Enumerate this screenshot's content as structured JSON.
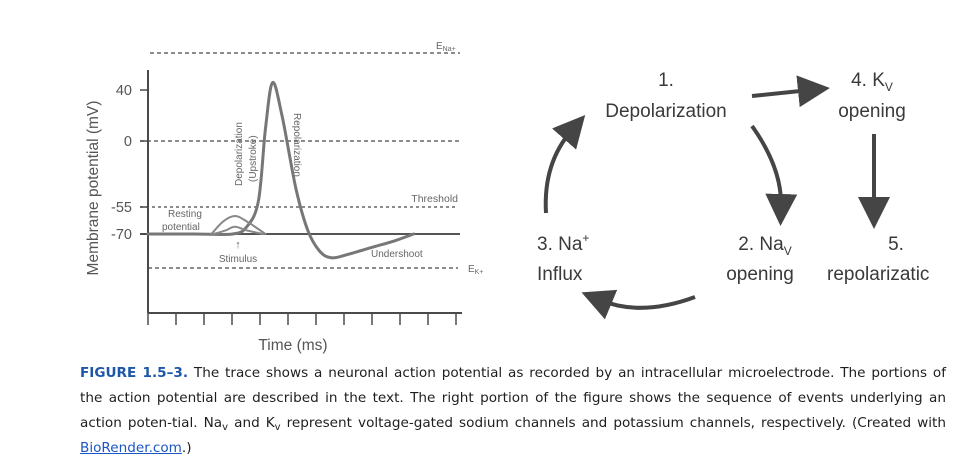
{
  "chart_data": {
    "type": "line",
    "title": "",
    "xlabel": "Time (ms)",
    "ylabel": "Membrane potential (mV)",
    "ylim": [
      -110,
      55
    ],
    "yticks": [
      {
        "value": 40,
        "label": "40"
      },
      {
        "value": 0,
        "label": "0"
      },
      {
        "value": -55,
        "label": "-55"
      },
      {
        "value": -70,
        "label": "-70"
      }
    ],
    "xtick_count": 12,
    "grid": false,
    "reference_lines": [
      {
        "name": "e_na",
        "value": 55,
        "label": "E",
        "sub": "Na+",
        "color": "#555555"
      },
      {
        "name": "zero",
        "value": 0,
        "label": "",
        "color": "#555555"
      },
      {
        "name": "threshold",
        "value": -55,
        "label": "Threshold",
        "color": "#555555"
      },
      {
        "name": "resting",
        "value": -70,
        "label": "",
        "color": "#555555"
      },
      {
        "name": "e_k",
        "value": -90,
        "label": "E",
        "sub": "K+",
        "color": "#555555"
      }
    ],
    "series": [
      {
        "role": "action-potential",
        "color": "#777777",
        "x": [
          0,
          2,
          3.6,
          4.2,
          4.7,
          5.0,
          5.3,
          5.7,
          6.3,
          6.8,
          7.3,
          7.8,
          8.5,
          9.5,
          10.5,
          11.3
        ],
        "y": [
          -70,
          -70,
          -70,
          -66,
          -50,
          10,
          43,
          20,
          -40,
          -68,
          -80,
          -84,
          -82,
          -78,
          -74,
          -70
        ]
      },
      {
        "role": "subthreshold-small",
        "color": "#888888",
        "x": [
          2.8,
          3.3,
          3.7,
          4.2,
          4.9
        ],
        "y": [
          -70,
          -68,
          -66,
          -68,
          -70
        ]
      },
      {
        "role": "subthreshold-large",
        "color": "#888888",
        "x": [
          2.7,
          3.2,
          3.7,
          4.2,
          5.0
        ],
        "y": [
          -70,
          -63,
          -60,
          -63,
          -70
        ]
      }
    ],
    "annotations": {
      "resting": [
        "Resting",
        "potential"
      ],
      "stimulus_arrow": "↑",
      "stimulus": "Stimulus",
      "depol": [
        "Depolarization",
        "(Upstroke)"
      ],
      "repol": "Repolarization",
      "undershoot": "Undershoot"
    }
  },
  "cycle": {
    "step1": {
      "n": "1.",
      "text": "Depolarization"
    },
    "step2": {
      "n": "2. Na",
      "sub": "V",
      "text": "opening"
    },
    "step3": {
      "n": "3. Na",
      "sup": "+",
      "text": "Influx"
    },
    "step4": {
      "n": "4. K",
      "sub": "V",
      "text": "opening"
    },
    "step5": {
      "n": "5.",
      "text": "repolarizatic"
    },
    "arrow_color": "#454545",
    "text_color": "#3a3a3a"
  },
  "caption": {
    "label": "FIGURE 1.5–3.",
    "p1": " The trace shows a neuronal action potential as recorded by an intracellular microelectrode. The portions of the action potential are described in the text. The right portion of the figure shows the sequence of events underlying an action poten-tial. Na",
    "sub1": "v",
    "p2": " and K",
    "sub2": "v",
    "p3": " represent voltage-gated sodium channels and potassium channels, respectively. (Created with ",
    "link": "BioRender.com",
    "p4": ".)"
  }
}
